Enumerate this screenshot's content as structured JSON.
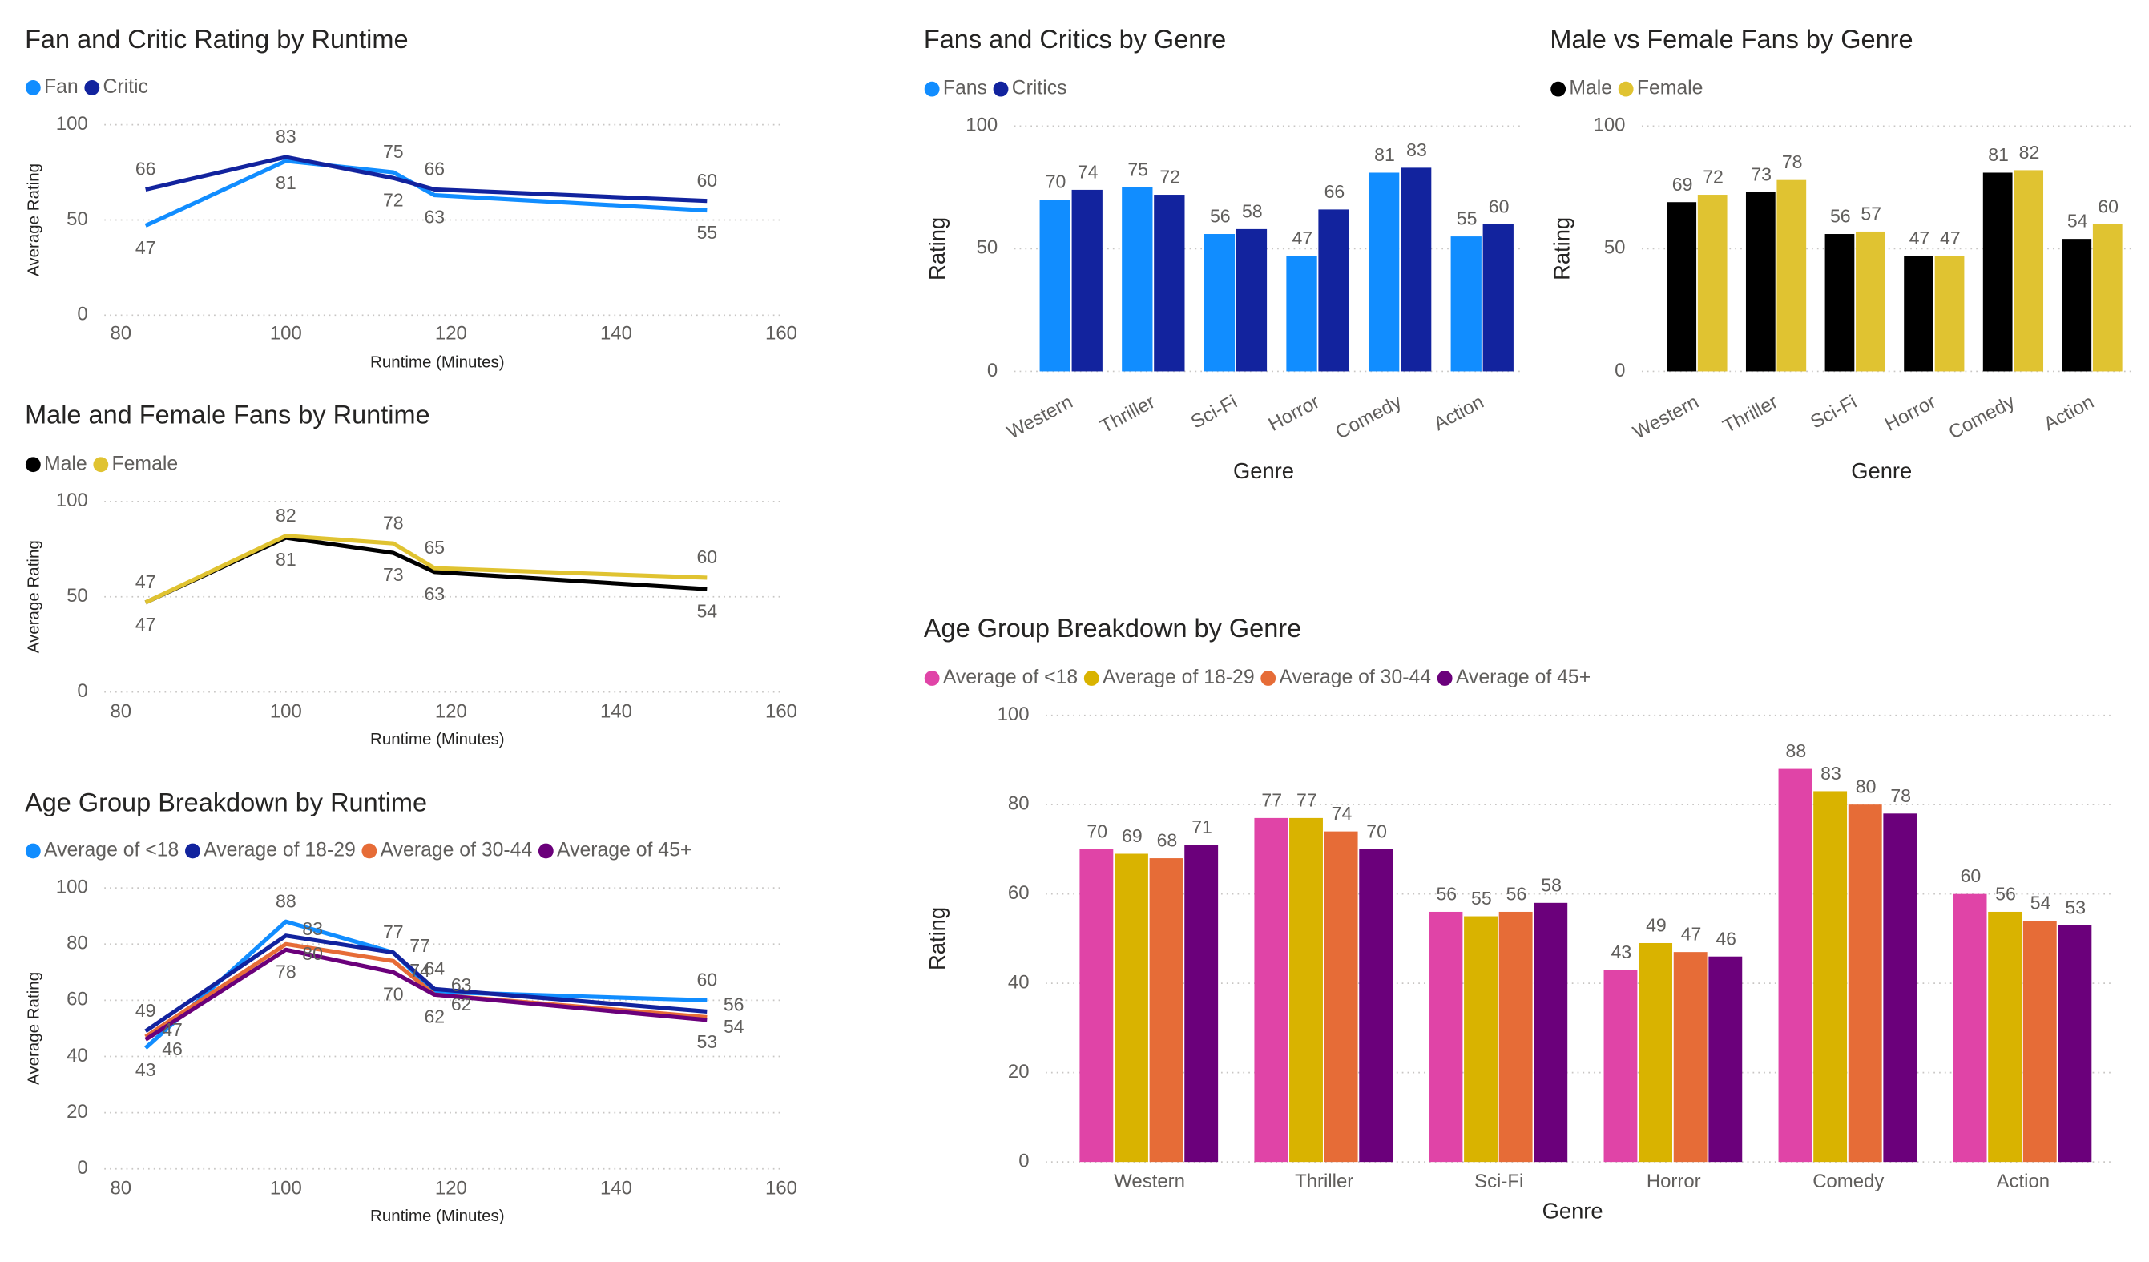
{
  "chart_data": [
    {
      "type": "line",
      "title": "Fan and Critic Rating by Runtime",
      "x_label": "Runtime (Minutes)",
      "y_label": "Average Rating",
      "x": [
        83,
        100,
        113,
        118,
        151
      ],
      "xlim": [
        80,
        160
      ],
      "xticks": [
        80,
        100,
        120,
        140,
        160
      ],
      "ylim": [
        0,
        100
      ],
      "yticks": [
        0,
        50,
        100
      ],
      "grid": true,
      "series": [
        {
          "name": "Fan",
          "color": "#118dff",
          "values": [
            47,
            81,
            75,
            63,
            55
          ]
        },
        {
          "name": "Critic",
          "color": "#12239e",
          "values": [
            66,
            83,
            72,
            66,
            60
          ]
        }
      ]
    },
    {
      "type": "line",
      "title": "Male and Female Fans by Runtime",
      "x_label": "Runtime (Minutes)",
      "y_label": "Average Rating",
      "x": [
        83,
        100,
        113,
        118,
        151
      ],
      "xlim": [
        80,
        160
      ],
      "xticks": [
        80,
        100,
        120,
        140,
        160
      ],
      "ylim": [
        0,
        100
      ],
      "yticks": [
        0,
        50,
        100
      ],
      "grid": true,
      "series": [
        {
          "name": "Male",
          "color": "#000000",
          "values": [
            47,
            81,
            73,
            63,
            54
          ]
        },
        {
          "name": "Female",
          "color": "#e0c331",
          "values": [
            47,
            82,
            78,
            65,
            60
          ]
        }
      ]
    },
    {
      "type": "line",
      "title": "Age Group Breakdown by Runtime",
      "x_label": "Runtime (Minutes)",
      "y_label": "Average Rating",
      "x": [
        83,
        100,
        113,
        118,
        151
      ],
      "xlim": [
        80,
        160
      ],
      "xticks": [
        80,
        100,
        120,
        140,
        160
      ],
      "ylim": [
        0,
        100
      ],
      "yticks": [
        0,
        20,
        40,
        60,
        80,
        100
      ],
      "grid": true,
      "series": [
        {
          "name": "Average of <18",
          "color": "#118dff",
          "values": [
            43,
            88,
            77,
            63,
            60
          ]
        },
        {
          "name": "Average of 18-29",
          "color": "#12239e",
          "values": [
            49,
            83,
            77,
            64,
            56
          ]
        },
        {
          "name": "Average of 30-44",
          "color": "#e66c37",
          "values": [
            47,
            80,
            74,
            62,
            54
          ]
        },
        {
          "name": "Average of 45+",
          "color": "#6b007b",
          "values": [
            46,
            78,
            70,
            62,
            53
          ]
        }
      ]
    },
    {
      "type": "bar",
      "title": "Fans and Critics by Genre",
      "x_label": "Genre",
      "y_label": "Rating",
      "categories": [
        "Western",
        "Thriller",
        "Sci-Fi",
        "Horror",
        "Comedy",
        "Action"
      ],
      "ylim": [
        0,
        100
      ],
      "yticks": [
        0,
        50,
        100
      ],
      "grid": true,
      "series": [
        {
          "name": "Fans",
          "color": "#118dff",
          "values": [
            70,
            75,
            56,
            47,
            81,
            55
          ]
        },
        {
          "name": "Critics",
          "color": "#12239e",
          "values": [
            74,
            72,
            58,
            66,
            83,
            60
          ]
        }
      ]
    },
    {
      "type": "bar",
      "title": "Male vs Female Fans by Genre",
      "x_label": "Genre",
      "y_label": "Rating",
      "categories": [
        "Western",
        "Thriller",
        "Sci-Fi",
        "Horror",
        "Comedy",
        "Action"
      ],
      "ylim": [
        0,
        100
      ],
      "yticks": [
        0,
        50,
        100
      ],
      "grid": true,
      "series": [
        {
          "name": "Male",
          "color": "#000000",
          "values": [
            69,
            73,
            56,
            47,
            81,
            54
          ]
        },
        {
          "name": "Female",
          "color": "#e0c331",
          "values": [
            72,
            78,
            57,
            47,
            82,
            60
          ]
        }
      ]
    },
    {
      "type": "bar",
      "title": "Age Group Breakdown by Genre",
      "x_label": "Genre",
      "y_label": "Rating",
      "categories": [
        "Western",
        "Thriller",
        "Sci-Fi",
        "Horror",
        "Comedy",
        "Action"
      ],
      "ylim": [
        0,
        100
      ],
      "yticks": [
        0,
        20,
        40,
        60,
        80,
        100
      ],
      "grid": true,
      "series": [
        {
          "name": "Average of <18",
          "color": "#e044a7",
          "values": [
            70,
            77,
            56,
            43,
            88,
            60
          ]
        },
        {
          "name": "Average of 18-29",
          "color": "#d9b300",
          "values": [
            69,
            77,
            55,
            49,
            83,
            56
          ]
        },
        {
          "name": "Average of 30-44",
          "color": "#e66c37",
          "values": [
            68,
            74,
            56,
            47,
            80,
            54
          ]
        },
        {
          "name": "Average of 45+",
          "color": "#6b007b",
          "values": [
            71,
            70,
            58,
            46,
            78,
            53
          ]
        }
      ]
    }
  ]
}
